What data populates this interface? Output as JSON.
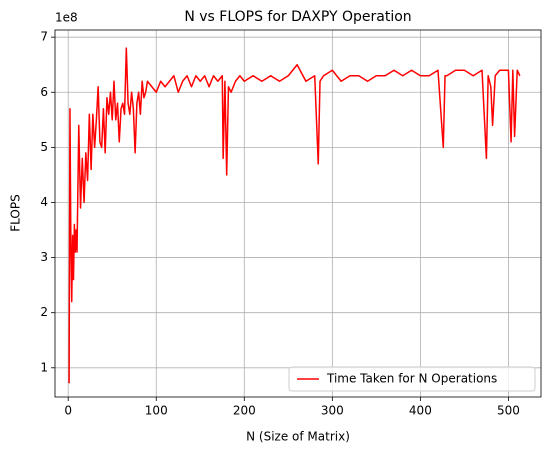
{
  "chart_data": {
    "type": "line",
    "title": "N vs FLOPS for DAXPY Operation",
    "x_label": "N (Size of Matrix)",
    "y_label": "FLOPS",
    "y_offset_label": "1e8",
    "x": [
      1,
      2,
      3,
      4,
      5,
      6,
      7,
      8,
      9,
      10,
      12,
      14,
      16,
      18,
      20,
      22,
      24,
      26,
      28,
      30,
      32,
      34,
      36,
      38,
      40,
      42,
      44,
      46,
      48,
      50,
      52,
      54,
      56,
      58,
      60,
      62,
      64,
      66,
      68,
      70,
      72,
      74,
      76,
      78,
      80,
      82,
      84,
      86,
      88,
      90,
      95,
      100,
      105,
      110,
      115,
      120,
      125,
      130,
      135,
      140,
      145,
      150,
      155,
      160,
      165,
      170,
      175,
      176,
      178,
      180,
      182,
      185,
      190,
      195,
      200,
      210,
      220,
      230,
      240,
      250,
      260,
      270,
      280,
      284,
      286,
      290,
      300,
      310,
      320,
      330,
      340,
      350,
      360,
      370,
      380,
      390,
      400,
      410,
      420,
      426,
      428,
      430,
      440,
      450,
      460,
      470,
      475,
      477,
      480,
      482,
      485,
      490,
      500,
      503,
      505,
      507,
      510,
      513
    ],
    "series": [
      {
        "name": "Time Taken for N Operations",
        "color": "#ff0000",
        "values": [
          0.72,
          5.7,
          3.3,
          2.2,
          3.4,
          2.6,
          3.6,
          3.1,
          3.5,
          3.1,
          5.4,
          3.9,
          4.8,
          4.0,
          4.9,
          4.4,
          5.6,
          4.6,
          5.6,
          5.0,
          5.5,
          6.1,
          5.1,
          5.0,
          5.7,
          4.9,
          5.9,
          5.6,
          6.0,
          5.5,
          6.2,
          5.5,
          5.8,
          5.1,
          5.7,
          5.8,
          5.6,
          6.8,
          5.8,
          5.6,
          6.0,
          5.7,
          4.9,
          5.8,
          6.0,
          5.6,
          6.2,
          5.9,
          6.0,
          6.2,
          6.1,
          6.0,
          6.2,
          6.1,
          6.2,
          6.3,
          6.0,
          6.2,
          6.3,
          6.1,
          6.3,
          6.2,
          6.3,
          6.1,
          6.3,
          6.2,
          6.3,
          4.8,
          6.2,
          4.5,
          6.1,
          6.0,
          6.2,
          6.3,
          6.2,
          6.3,
          6.2,
          6.3,
          6.2,
          6.3,
          6.5,
          6.2,
          6.3,
          4.7,
          6.2,
          6.3,
          6.4,
          6.2,
          6.3,
          6.3,
          6.2,
          6.3,
          6.3,
          6.4,
          6.3,
          6.4,
          6.3,
          6.3,
          6.4,
          5.0,
          6.3,
          6.3,
          6.4,
          6.4,
          6.3,
          6.4,
          4.8,
          6.3,
          6.1,
          5.4,
          6.3,
          6.4,
          6.4,
          5.1,
          6.4,
          5.2,
          6.4,
          6.3
        ]
      }
    ],
    "xlim": [
      -15,
      537
    ],
    "ylim": [
      0.47,
      7.13
    ],
    "xticks": [
      0,
      100,
      200,
      300,
      400,
      500
    ],
    "yticks": [
      1,
      2,
      3,
      4,
      5,
      6,
      7
    ],
    "grid": true,
    "legend": "lower right"
  }
}
